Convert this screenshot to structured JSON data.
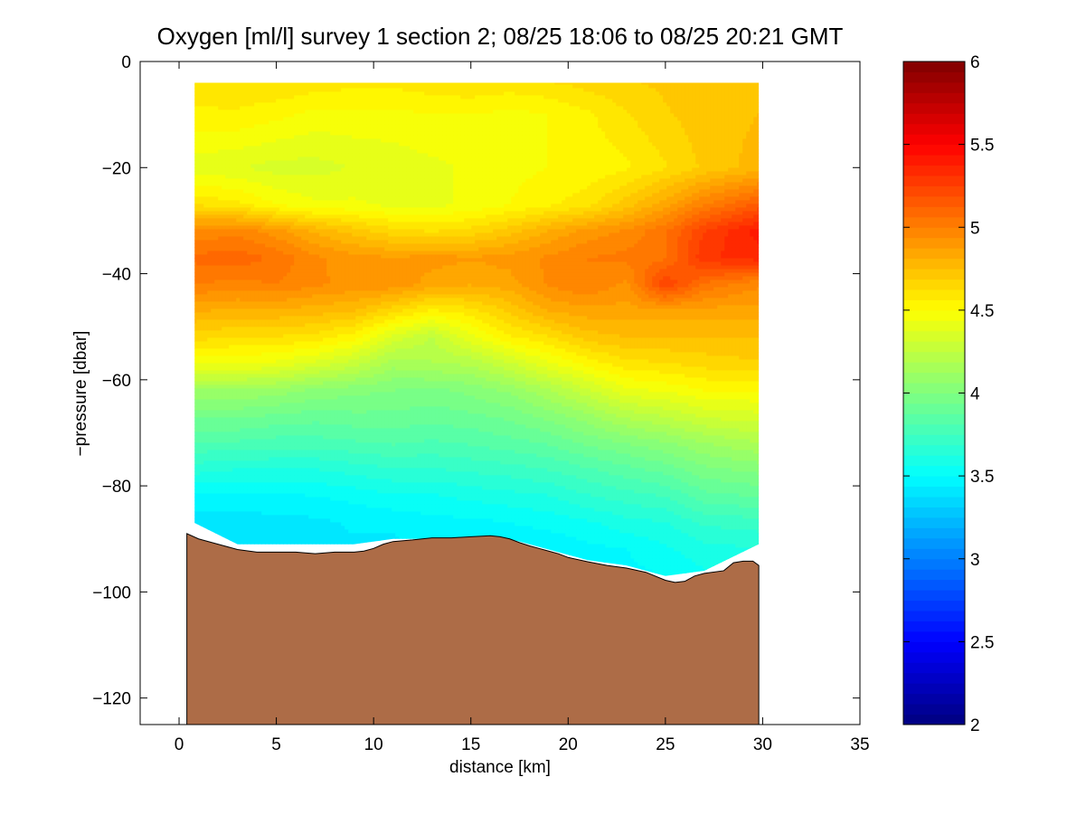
{
  "chart_data": {
    "type": "heatmap",
    "title": "Oxygen [ml/l] survey 1 section 2; 08/25 18:06 to 08/25 20:21 GMT",
    "xlabel": "distance [km]",
    "ylabel": "−pressure [dbar]",
    "xlim": [
      -2,
      35
    ],
    "ylim": [
      -125,
      0
    ],
    "xticks": [
      0,
      5,
      10,
      15,
      20,
      25,
      30,
      35
    ],
    "xtick_labels": [
      "0",
      "5",
      "10",
      "15",
      "20",
      "25",
      "30",
      "35"
    ],
    "yticks": [
      0,
      -20,
      -40,
      -60,
      -80,
      -100,
      -120
    ],
    "ytick_labels": [
      "0",
      "−20",
      "−40",
      "−60",
      "−80",
      "−100",
      "−120"
    ],
    "colorbar": {
      "colormap": "jet",
      "range": [
        2,
        6
      ],
      "ticks": [
        2,
        2.5,
        3,
        3.5,
        4,
        4.5,
        5,
        5.5,
        6
      ],
      "tick_labels": [
        "2",
        "2.5",
        "3",
        "3.5",
        "4",
        "4.5",
        "5",
        "5.5",
        "6"
      ]
    },
    "grid": false,
    "section": {
      "distance_km": [
        0.8,
        3,
        5,
        7,
        9,
        11,
        13,
        15,
        17,
        19,
        21,
        23,
        25,
        27,
        29.8
      ],
      "depth_dbar": [
        -4,
        -10,
        -20,
        -27,
        -32,
        -37,
        -42,
        -47,
        -52,
        -57,
        -62,
        -67,
        -72,
        -77,
        -82,
        -87,
        -92,
        -97
      ],
      "oxygen_ml_per_l": [
        [
          4.6,
          4.62,
          4.62,
          4.6,
          4.58,
          4.58,
          4.6,
          4.62,
          4.6,
          4.62,
          4.65,
          4.68,
          4.7,
          4.72,
          4.7
        ],
        [
          4.55,
          4.55,
          4.52,
          4.48,
          4.48,
          4.48,
          4.5,
          4.5,
          4.48,
          4.5,
          4.55,
          4.62,
          4.68,
          4.72,
          4.75
        ],
        [
          4.4,
          4.38,
          4.35,
          4.35,
          4.38,
          4.4,
          4.42,
          4.45,
          4.48,
          4.5,
          4.52,
          4.55,
          4.62,
          4.7,
          4.78
        ],
        [
          4.62,
          4.58,
          4.5,
          4.45,
          4.45,
          4.42,
          4.42,
          4.45,
          4.5,
          4.55,
          4.6,
          4.72,
          4.85,
          5.0,
          5.15
        ],
        [
          4.95,
          4.98,
          4.9,
          4.8,
          4.72,
          4.65,
          4.62,
          4.65,
          4.72,
          4.82,
          4.9,
          4.95,
          5.05,
          5.25,
          5.4
        ],
        [
          5.08,
          5.1,
          5.05,
          4.95,
          4.9,
          4.88,
          4.9,
          4.88,
          4.9,
          4.95,
          5.0,
          5.02,
          5.05,
          5.3,
          5.35
        ],
        [
          5.0,
          4.98,
          5.0,
          4.95,
          4.92,
          4.92,
          4.85,
          4.82,
          4.85,
          4.95,
          5.0,
          4.92,
          5.25,
          5.05,
          4.95
        ],
        [
          4.82,
          4.8,
          4.8,
          4.78,
          4.75,
          4.65,
          4.55,
          4.6,
          4.7,
          4.82,
          4.85,
          4.85,
          4.85,
          4.85,
          4.85
        ],
        [
          4.65,
          4.62,
          4.62,
          4.6,
          4.52,
          4.35,
          4.25,
          4.42,
          4.55,
          4.62,
          4.72,
          4.75,
          4.75,
          4.75,
          4.75
        ],
        [
          4.45,
          4.45,
          4.42,
          4.35,
          4.28,
          4.15,
          4.18,
          4.2,
          4.3,
          4.42,
          4.52,
          4.6,
          4.62,
          4.65,
          4.68
        ],
        [
          4.12,
          4.12,
          4.1,
          4.05,
          4.02,
          4.0,
          3.98,
          4.02,
          4.08,
          4.18,
          4.3,
          4.42,
          4.45,
          4.5,
          4.5
        ],
        [
          3.95,
          3.95,
          3.92,
          3.9,
          3.92,
          3.92,
          3.9,
          3.92,
          3.95,
          4.02,
          4.1,
          4.2,
          4.25,
          4.32,
          4.35
        ],
        [
          3.8,
          3.8,
          3.78,
          3.78,
          3.8,
          3.82,
          3.8,
          3.82,
          3.85,
          3.88,
          3.95,
          4.0,
          4.05,
          4.12,
          4.18
        ],
        [
          3.65,
          3.62,
          3.62,
          3.62,
          3.65,
          3.68,
          3.68,
          3.7,
          3.72,
          3.75,
          3.8,
          3.85,
          3.9,
          3.98,
          4.02
        ],
        [
          3.48,
          3.48,
          3.48,
          3.5,
          3.52,
          3.55,
          3.55,
          3.58,
          3.6,
          3.62,
          3.68,
          3.72,
          3.75,
          3.85,
          3.88
        ],
        [
          3.4,
          3.4,
          3.42,
          3.42,
          3.45,
          3.45,
          3.48,
          3.48,
          3.5,
          3.52,
          3.55,
          3.6,
          3.62,
          3.7,
          3.72
        ],
        [
          3.4,
          3.4,
          3.4,
          3.4,
          3.42,
          3.42,
          3.45,
          3.45,
          3.45,
          3.45,
          3.48,
          3.5,
          3.55,
          3.6,
          3.62
        ],
        [
          3.4,
          3.4,
          3.4,
          3.4,
          3.4,
          3.4,
          3.42,
          3.42,
          3.42,
          3.42,
          3.45,
          3.48,
          3.5,
          3.55,
          3.58
        ]
      ],
      "data_top_by_column": [
        -4,
        -4,
        -4,
        -4,
        -4,
        -4,
        -4,
        -4,
        -4,
        -4,
        -4,
        -4,
        -4,
        -4,
        -4
      ],
      "data_bottom_by_column": [
        -87,
        -91,
        -91,
        -91,
        -91,
        -90,
        -90,
        -90,
        -90,
        -92,
        -94,
        -95,
        -97,
        -96,
        -91
      ]
    },
    "bathymetry": {
      "color": "#AD6C47",
      "distance_km": [
        0.4,
        1.0,
        2.0,
        3.0,
        4.0,
        5.0,
        6.0,
        7.0,
        8.0,
        9.0,
        9.5,
        10.0,
        10.5,
        11.0,
        12.0,
        13.0,
        14.0,
        15.0,
        16.0,
        16.5,
        17.0,
        17.5,
        18.0,
        18.5,
        19.0,
        19.5,
        20.0,
        21.0,
        22.0,
        23.0,
        24.0,
        25.0,
        25.5,
        26.0,
        26.5,
        27.0,
        28.0,
        28.5,
        29.0,
        29.5,
        29.8
      ],
      "depth_dbar": [
        -89,
        -90,
        -91,
        -92,
        -92.5,
        -92.5,
        -92.5,
        -92.8,
        -92.5,
        -92.5,
        -92.3,
        -91.8,
        -91,
        -90.5,
        -90.2,
        -89.8,
        -89.8,
        -89.6,
        -89.4,
        -89.6,
        -90,
        -90.7,
        -91.3,
        -91.8,
        -92.3,
        -92.8,
        -93.5,
        -94.3,
        -95,
        -95.5,
        -96.3,
        -97.8,
        -98.2,
        -98,
        -97,
        -96.5,
        -96,
        -94.5,
        -94.2,
        -94.2,
        -95
      ]
    }
  }
}
